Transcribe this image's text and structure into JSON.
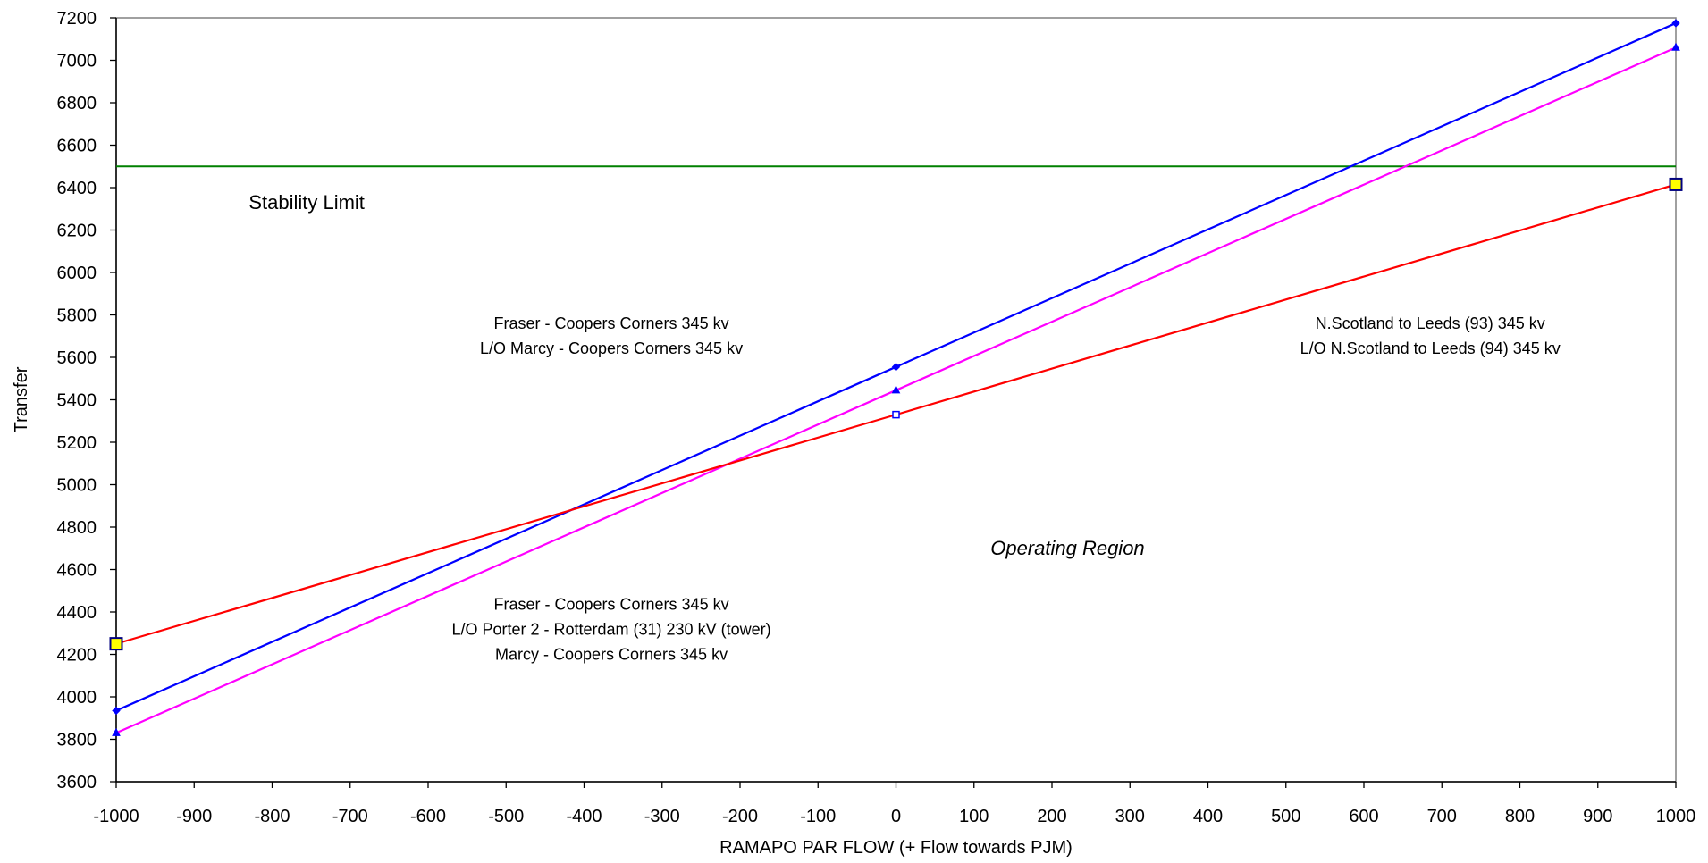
{
  "chart_data": {
    "type": "line",
    "title": "",
    "xlabel": "RAMAPO PAR FLOW (+ Flow towards PJM)",
    "ylabel": "Transfer",
    "xlim": [
      -1000,
      1000
    ],
    "ylim": [
      3600,
      7200
    ],
    "x_ticks": [
      -1000,
      -900,
      -800,
      -700,
      -600,
      -500,
      -400,
      -300,
      -200,
      -100,
      0,
      100,
      200,
      300,
      400,
      500,
      600,
      700,
      800,
      900,
      1000
    ],
    "y_ticks": [
      3600,
      3800,
      4000,
      4200,
      4400,
      4600,
      4800,
      5000,
      5200,
      5400,
      5600,
      5800,
      6000,
      6200,
      6400,
      6600,
      6800,
      7000,
      7200
    ],
    "grid": false,
    "legend": "none",
    "series": [
      {
        "color": "#0000ff",
        "marker": "diamond",
        "x": [
          -1000,
          0,
          1000
        ],
        "y": [
          3935,
          5555,
          7175
        ]
      },
      {
        "color": "#ff00ff",
        "marker": "triangle",
        "x": [
          -1000,
          0,
          1000
        ],
        "y": [
          3830,
          5445,
          7060
        ]
      },
      {
        "color": "#ff0000",
        "marker": "square",
        "x": [
          -1000,
          0,
          1000
        ],
        "y": [
          4250,
          5330,
          6415
        ]
      }
    ],
    "reference_lines": [
      {
        "color": "#008000",
        "y": 6500
      }
    ],
    "highlight_points": [
      {
        "x": -1000,
        "y": 4250,
        "fill": "#ffff00",
        "stroke": "#000080"
      },
      {
        "x": 1000,
        "y": 6415,
        "fill": "#ffff00",
        "stroke": "#000080"
      }
    ],
    "annotations": [
      {
        "lines": [
          "Stability Limit"
        ],
        "x": -830,
        "y": 6300,
        "style": "big"
      },
      {
        "lines": [
          "Fraser - Coopers Corners 345 kv",
          "L/O  Marcy - Coopers Corners 345 kv"
        ],
        "x": -365,
        "y": 5735,
        "style": "normal"
      },
      {
        "lines": [
          "N.Scotland to Leeds (93) 345 kv",
          "L/O  N.Scotland to Leeds  (94) 345 kv"
        ],
        "x": 685,
        "y": 5735,
        "style": "normal"
      },
      {
        "lines": [
          "Operating Region"
        ],
        "x": 220,
        "y": 4670,
        "style": "italic"
      },
      {
        "lines": [
          "Fraser - Coopers Corners 345 kv",
          "L/O Porter 2  - Rotterdam (31) 230 kV (tower)",
          "Marcy - Coopers Corners 345 kv"
        ],
        "x": -365,
        "y": 4410,
        "style": "normal"
      }
    ]
  }
}
